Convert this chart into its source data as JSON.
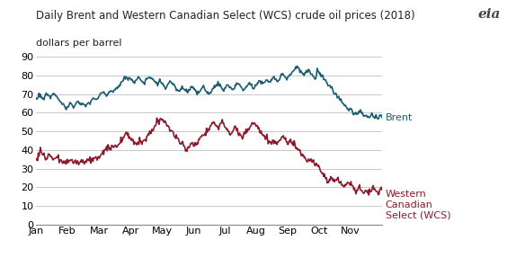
{
  "title": "Daily Brent and Western Canadian Select (WCS) crude oil prices (2018)",
  "ylabel": "dollars per barrel",
  "brent_color": "#1b5e72",
  "wcs_color": "#8b1a2d",
  "background_color": "#ffffff",
  "grid_color": "#c8c8c8",
  "ylim": [
    0,
    90
  ],
  "yticks": [
    0,
    10,
    20,
    30,
    40,
    50,
    60,
    70,
    80,
    90
  ],
  "months": [
    "Jan",
    "Feb",
    "Mar",
    "Apr",
    "May",
    "Jun",
    "Jul",
    "Aug",
    "Sep",
    "Oct",
    "Nov"
  ],
  "brent_monthly_key": [
    [
      67,
      68,
      70,
      69,
      68,
      67,
      69,
      70,
      70,
      69,
      68,
      69,
      70,
      70,
      69,
      68,
      67
    ],
    [
      66,
      65,
      64,
      63,
      62,
      63,
      64,
      65,
      64,
      63,
      64,
      65,
      66,
      65,
      64,
      65,
      64,
      63,
      65
    ],
    [
      65,
      65,
      66,
      67,
      68,
      67,
      67,
      68,
      69,
      70,
      71,
      71,
      70,
      69,
      70,
      71,
      72,
      71,
      72,
      73,
      73
    ],
    [
      74,
      75,
      76,
      77,
      78,
      79,
      78,
      78,
      79,
      78,
      77,
      76,
      77,
      78,
      79,
      78,
      77,
      76,
      76,
      77,
      78,
      79,
      79
    ],
    [
      79,
      78,
      77,
      76,
      75,
      76,
      77,
      76,
      75,
      74,
      73,
      74,
      76,
      77,
      76,
      75,
      74,
      73,
      72,
      71,
      72,
      73,
      74
    ],
    [
      73,
      72,
      71,
      72,
      73,
      74,
      73,
      72,
      71,
      70,
      71,
      72,
      73,
      74,
      73,
      72,
      71,
      70,
      71,
      72,
      73,
      74,
      75
    ],
    [
      76,
      75,
      74,
      73,
      72,
      73,
      74,
      75,
      74,
      73,
      72,
      73,
      74,
      75,
      76,
      75,
      74,
      73,
      72,
      73,
      74,
      75,
      76
    ],
    [
      75,
      74,
      73,
      74,
      75,
      76,
      77,
      76,
      75,
      76,
      77,
      78,
      77,
      76,
      77,
      78,
      79,
      78,
      77,
      78,
      79,
      80,
      81
    ],
    [
      80,
      79,
      78,
      79,
      80,
      81,
      82,
      83,
      84,
      85,
      84,
      83,
      82,
      81,
      80,
      81,
      82,
      83,
      82,
      81,
      80,
      79,
      78
    ],
    [
      83,
      82,
      81,
      80,
      79,
      78,
      77,
      76,
      75,
      74,
      73,
      72,
      71,
      70,
      69,
      68,
      67,
      66,
      65,
      64,
      63,
      62,
      61
    ],
    [
      62,
      61,
      60,
      59,
      60,
      59,
      60,
      61,
      60,
      59,
      58,
      59,
      58,
      57,
      58,
      59,
      58,
      57,
      58,
      57,
      58,
      59,
      58
    ]
  ],
  "wcs_monthly_key": [
    [
      35,
      36,
      38,
      41,
      39,
      37,
      36,
      35,
      36,
      38,
      37,
      36,
      35,
      36,
      37,
      36,
      35
    ],
    [
      34,
      33,
      34,
      33,
      34,
      33,
      34,
      35,
      34,
      33,
      34,
      33,
      34,
      33,
      34,
      35,
      34,
      33,
      34
    ],
    [
      35,
      35,
      35,
      35,
      36,
      35,
      36,
      35,
      36,
      37,
      38,
      39,
      40,
      41,
      42,
      41,
      40,
      41,
      42,
      43,
      42
    ],
    [
      43,
      44,
      45,
      46,
      47,
      48,
      49,
      48,
      47,
      46,
      45,
      44,
      43,
      44,
      45,
      44,
      43,
      44,
      45,
      46,
      47,
      48,
      49
    ],
    [
      50,
      51,
      52,
      53,
      54,
      55,
      56,
      57,
      56,
      55,
      54,
      53,
      52,
      51,
      50,
      49,
      48,
      47,
      46,
      45,
      44,
      43,
      44
    ],
    [
      41,
      40,
      41,
      42,
      43,
      44,
      43,
      42,
      43,
      44,
      45,
      46,
      47,
      48,
      49,
      50,
      51,
      52,
      53,
      54,
      55,
      54,
      53
    ],
    [
      52,
      53,
      54,
      55,
      54,
      53,
      52,
      51,
      50,
      49,
      50,
      51,
      52,
      51,
      50,
      49,
      48,
      47,
      48,
      49,
      50,
      51,
      52
    ],
    [
      53,
      54,
      55,
      54,
      53,
      52,
      51,
      50,
      49,
      48,
      47,
      46,
      45,
      44,
      43,
      44,
      45,
      44,
      43,
      44,
      45,
      46,
      47
    ],
    [
      46,
      45,
      44,
      43,
      44,
      45,
      44,
      43,
      42,
      41,
      40,
      39,
      38,
      37,
      36,
      35,
      34,
      33,
      34,
      35,
      34,
      33,
      32
    ],
    [
      31,
      30,
      29,
      28,
      27,
      26,
      25,
      24,
      23,
      24,
      25,
      24,
      23,
      24,
      25,
      24,
      23,
      22,
      21,
      20,
      21,
      22,
      23
    ],
    [
      22,
      21,
      20,
      19,
      18,
      19,
      20,
      19,
      18,
      17,
      18,
      19,
      18,
      17,
      18,
      19,
      20,
      19,
      18,
      17,
      18,
      19,
      20
    ]
  ],
  "brent_label": "Brent",
  "wcs_label": "Western\nCanadian\nSelect (WCS)",
  "eia_text": "eia"
}
